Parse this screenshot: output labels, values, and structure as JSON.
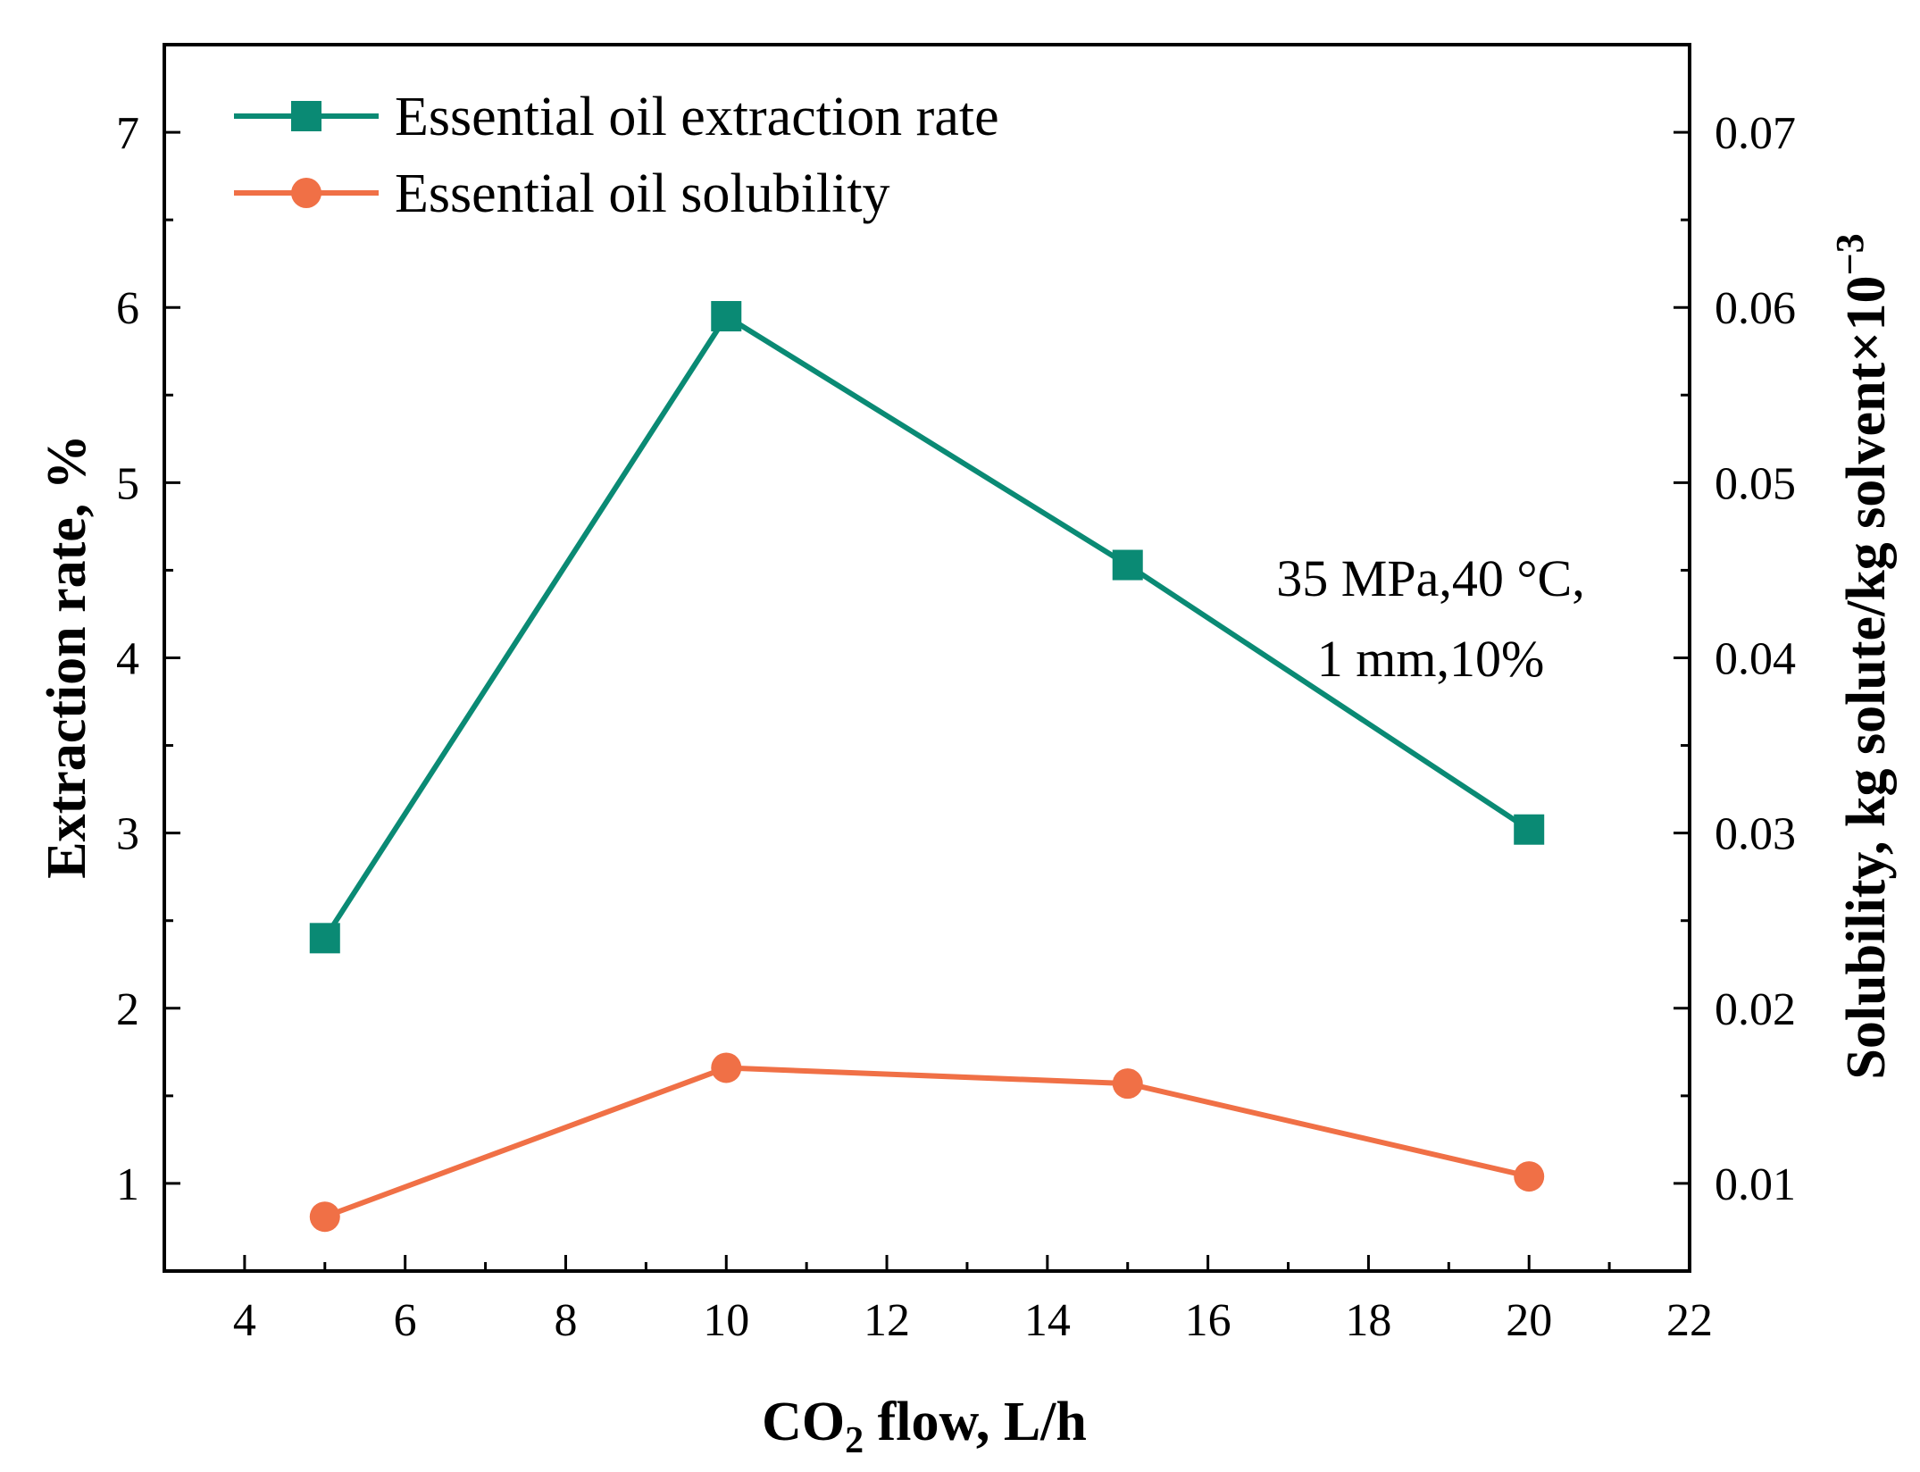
{
  "chart_data": {
    "type": "line",
    "title": "",
    "x": [
      5,
      10,
      15,
      20
    ],
    "xlabel": {
      "main": "CO",
      "sub": "2",
      "rest": " flow, L/h"
    },
    "xlim": [
      3,
      22
    ],
    "xticks": [
      4,
      6,
      8,
      10,
      12,
      14,
      16,
      18,
      20,
      22
    ],
    "ylabel_left": "Extraction rate, %",
    "ylim_left": [
      0.5,
      7.5
    ],
    "yticks_left": [
      1,
      2,
      3,
      4,
      5,
      6,
      7
    ],
    "ylabel_right": {
      "main": "Solubility, kg solute/kg solvent×10",
      "sup": "−3"
    },
    "ylim_right": [
      0.005,
      0.075
    ],
    "yticks_right": [
      "0.01",
      "0.02",
      "0.03",
      "0.04",
      "0.05",
      "0.06",
      "0.07"
    ],
    "yticks_right_values": [
      0.01,
      0.02,
      0.03,
      0.04,
      0.05,
      0.06,
      0.07
    ],
    "series": [
      {
        "name": "Essential oil extraction rate",
        "axis": "left",
        "marker": "square",
        "color": "#0a8a74",
        "values": [
          2.4,
          5.95,
          4.53,
          3.02
        ]
      },
      {
        "name": "Essential oil solubility",
        "axis": "right",
        "marker": "circle",
        "color": "#f07046",
        "values": [
          0.0081,
          0.0166,
          0.0157,
          0.0104
        ]
      }
    ],
    "annotation": [
      "35 MPa,40 °C,",
      "1 mm,10%"
    ],
    "legend": "top-left",
    "grid": false
  }
}
